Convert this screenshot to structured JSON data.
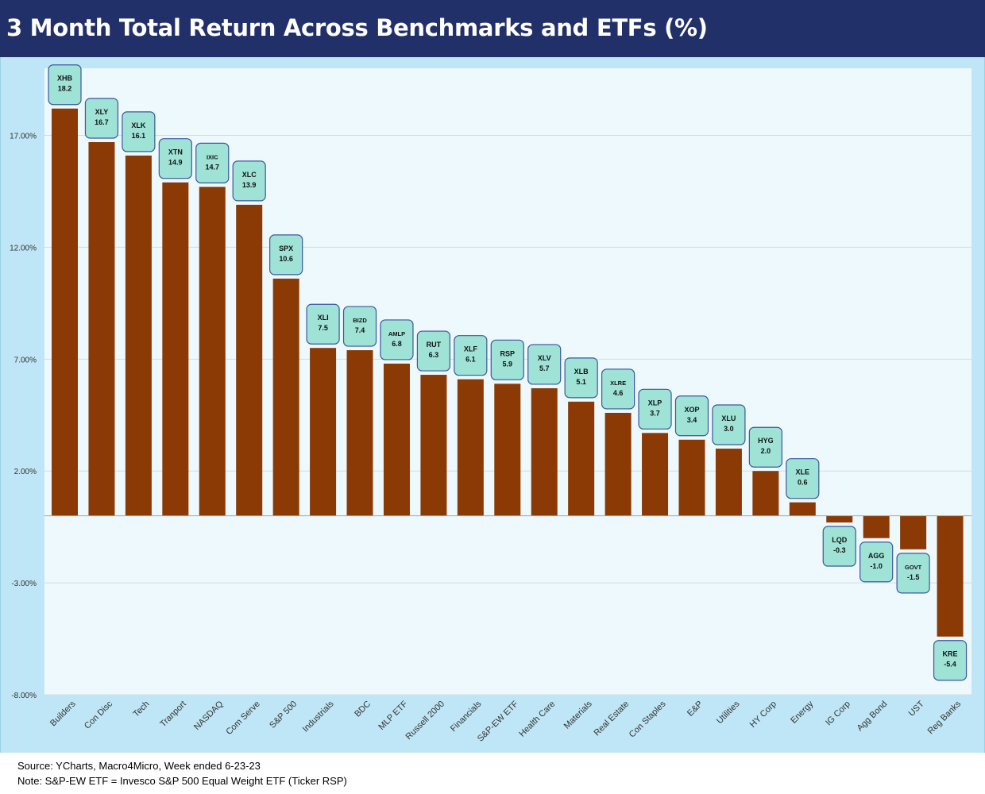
{
  "header": {
    "title": "3 Month Total Return Across Benchmarks and ETFs (%)"
  },
  "notes": {
    "source": "Source: YCharts, Macro4Micro, Week ended 6-23-23",
    "note": "Note: S&P-EW ETF = Invesco S&P 500 Equal Weight ETF (Ticker RSP)"
  },
  "colors": {
    "title_bg": "#22306a",
    "outer_bg": "#bfe6f6",
    "plot_bg": "#eef9fd",
    "bar": "#8b3a05",
    "label_fill": "#9fe2d6",
    "label_border": "#3b56a3"
  },
  "chart_data": {
    "type": "bar",
    "title": "3 Month Total Return Across Benchmarks and ETFs (%)",
    "xlabel": "",
    "ylabel": "",
    "ylim": [
      -8,
      20
    ],
    "yticks": [
      17,
      12,
      7,
      2,
      -3,
      -8
    ],
    "ytick_labels": [
      "17.00%",
      "12.00%",
      "7.00%",
      "2.00%",
      "-3.00%",
      "-8.00%"
    ],
    "grid": true,
    "categories": [
      "Builders",
      "Con Disc",
      "Tech",
      "Tranport",
      "NASDAQ",
      "Com Serve",
      "S&P 500",
      "Industrials",
      "BDC",
      "MLP ETF",
      "Russell 2000",
      "Financials",
      "S&P-EW ETF",
      "Health Care",
      "Materials",
      "Real Estate",
      "Con Staples",
      "E&P",
      "Utilities",
      "HY Corp",
      "Energy",
      "IG Corp",
      "Agg Bond",
      "UST",
      "Reg Banks"
    ],
    "tickers": [
      "XHB",
      "XLY",
      "XLK",
      "XTN",
      "IXIC",
      "XLC",
      "SPX",
      "XLI",
      "BIZD",
      "AMLP",
      "RUT",
      "XLF",
      "RSP",
      "XLV",
      "XLB",
      "XLRE",
      "XLP",
      "XOP",
      "XLU",
      "HYG",
      "XLE",
      "LQD",
      "AGG",
      "GOVT",
      "KRE"
    ],
    "values": [
      18.2,
      16.7,
      16.1,
      14.9,
      14.7,
      13.9,
      10.6,
      7.5,
      7.4,
      6.8,
      6.3,
      6.1,
      5.9,
      5.7,
      5.1,
      4.6,
      3.7,
      3.4,
      3.0,
      2.0,
      0.6,
      -0.3,
      -1.0,
      -1.5,
      -5.4
    ],
    "value_labels": [
      "18.2",
      "16.7",
      "16.1",
      "14.9",
      "14.7",
      "13.9",
      "10.6",
      "7.5",
      "7.4",
      "6.8",
      "6.3",
      "6.1",
      "5.9",
      "5.7",
      "5.1",
      "4.6",
      "3.7",
      "3.4",
      "3.0",
      "2.0",
      "0.6",
      "-0.3",
      "-1.0",
      "-1.5",
      "-5.4"
    ]
  }
}
